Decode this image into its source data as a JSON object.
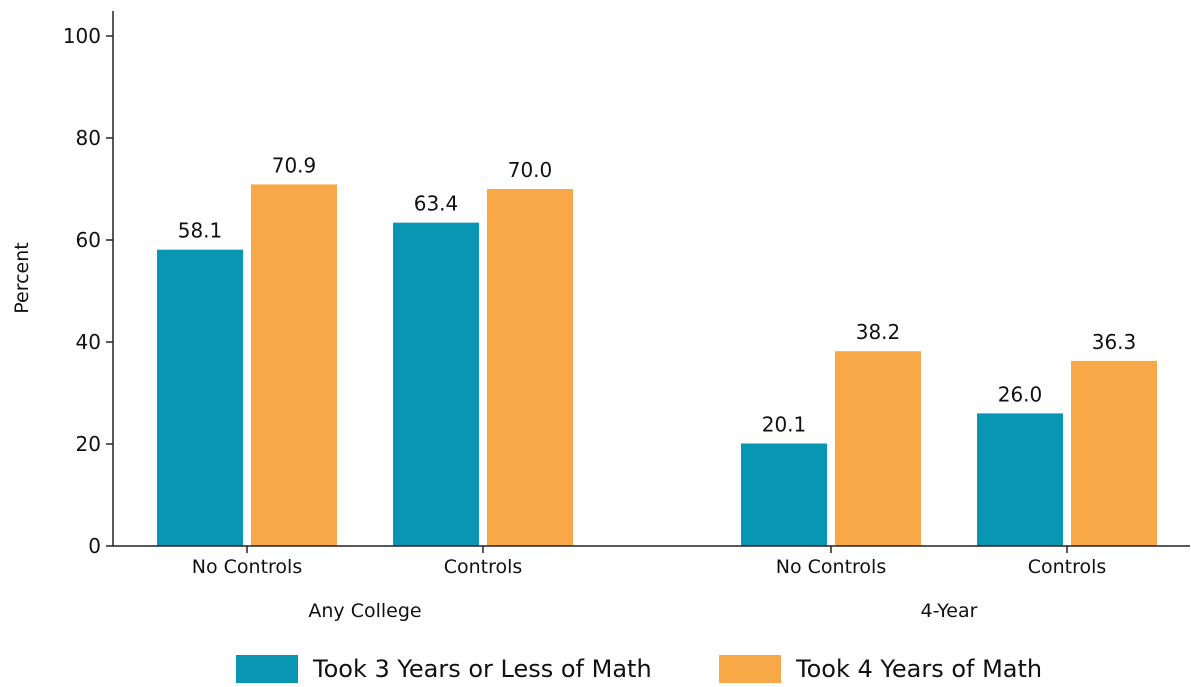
{
  "chart_data": {
    "type": "bar",
    "ylabel": "Percent",
    "ylim": [
      0,
      100
    ],
    "yticks": [
      0,
      20,
      40,
      60,
      80,
      100
    ],
    "grid": false,
    "legend_position": "bottom",
    "groups": [
      {
        "label": "Any College",
        "categories": [
          "No Controls",
          "Controls"
        ]
      },
      {
        "label": "4-Year",
        "categories": [
          "No Controls",
          "Controls"
        ]
      }
    ],
    "series": [
      {
        "name": "Took 3 Years or Less of Math",
        "color": "#0896b3",
        "values": [
          58.1,
          63.4,
          20.1,
          26.0
        ]
      },
      {
        "name": "Took 4 Years of Math",
        "color": "#f9a847",
        "values": [
          70.9,
          70.0,
          38.2,
          36.3
        ]
      }
    ]
  }
}
